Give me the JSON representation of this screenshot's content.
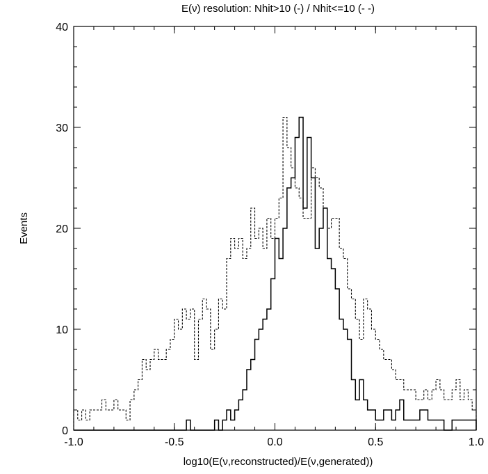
{
  "chart_data": {
    "type": "histogram",
    "title": "E(ν) resolution: Nhit>10 (-) / Nhit<=10 (- -)",
    "xlabel": "log10(E(ν,reconstructed)/E(ν,generated))",
    "ylabel": "Events",
    "xlim": [
      -1.0,
      1.0
    ],
    "ylim": [
      0,
      40
    ],
    "x_ticks": [
      -1.0,
      -0.5,
      0.0,
      0.5,
      1.0
    ],
    "x_tick_labels": [
      "-1.0",
      "-0.5",
      "0.0",
      "0.5",
      "1.0"
    ],
    "y_ticks": [
      0,
      10,
      20,
      30,
      40
    ],
    "y_tick_labels": [
      "0",
      "10",
      "20",
      "30",
      "40"
    ],
    "bin_edges_start": -1.0,
    "bin_width": 0.02,
    "legend": "none",
    "grid": false,
    "series": [
      {
        "style": "solid",
        "color": "#000000",
        "values": [
          0,
          0,
          0,
          0,
          0,
          0,
          0,
          0,
          0,
          0,
          0,
          0,
          0,
          0,
          0,
          0,
          0,
          0,
          0,
          0,
          0,
          0,
          0,
          0,
          0,
          0,
          0,
          0,
          1,
          0,
          0,
          0,
          0,
          0,
          0,
          1,
          0,
          1,
          2,
          1,
          2,
          3,
          4,
          6,
          7,
          9,
          10,
          11,
          12,
          15,
          19,
          17,
          20,
          24,
          25,
          29,
          31,
          22,
          29,
          25,
          18,
          20,
          22,
          17,
          16,
          14,
          11,
          10,
          9,
          5,
          3,
          5,
          3,
          2,
          2,
          1,
          1,
          2,
          2,
          1,
          2,
          3,
          1,
          1,
          1,
          1,
          2,
          2,
          1,
          1,
          1,
          1,
          0,
          0,
          1,
          1,
          1,
          1,
          1,
          1
        ]
      },
      {
        "style": "dashed",
        "color": "#000000",
        "values": [
          2,
          1,
          2,
          1,
          2,
          2,
          2,
          3,
          2,
          2,
          3,
          2,
          2,
          1,
          3,
          4,
          5,
          7,
          6,
          7,
          8,
          7,
          7,
          8,
          9,
          11,
          10,
          12,
          11,
          12,
          7,
          11,
          13,
          12,
          8,
          10,
          13,
          12,
          17,
          19,
          18,
          19,
          17,
          18,
          22,
          19,
          20,
          18,
          21,
          19,
          21,
          23,
          31,
          28,
          26,
          24,
          23,
          21,
          21,
          26,
          25,
          24,
          22,
          20,
          21,
          21,
          18,
          17,
          14,
          13,
          11,
          9,
          13,
          12,
          10,
          9,
          8,
          7,
          7,
          6,
          5,
          5,
          4,
          4,
          4,
          3,
          3,
          4,
          3,
          4,
          5,
          4,
          3,
          3,
          4,
          5,
          3,
          4,
          3,
          2
        ]
      }
    ]
  }
}
